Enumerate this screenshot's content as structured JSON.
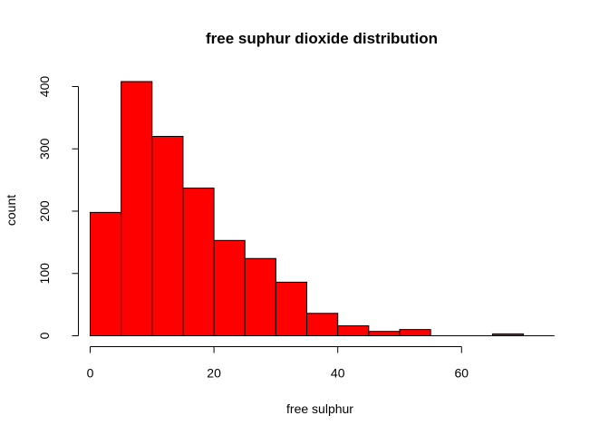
{
  "chart_data": {
    "type": "bar",
    "subtype": "histogram",
    "title": "free suphur dioxide distribution",
    "xlabel": "free sulphur",
    "ylabel": "count",
    "bin_width": 5,
    "bins": [
      {
        "start": 0,
        "end": 5,
        "count": 198
      },
      {
        "start": 5,
        "end": 10,
        "count": 408
      },
      {
        "start": 10,
        "end": 15,
        "count": 320
      },
      {
        "start": 15,
        "end": 20,
        "count": 237
      },
      {
        "start": 20,
        "end": 25,
        "count": 153
      },
      {
        "start": 25,
        "end": 30,
        "count": 124
      },
      {
        "start": 30,
        "end": 35,
        "count": 86
      },
      {
        "start": 35,
        "end": 40,
        "count": 36
      },
      {
        "start": 40,
        "end": 45,
        "count": 16
      },
      {
        "start": 45,
        "end": 50,
        "count": 7
      },
      {
        "start": 50,
        "end": 55,
        "count": 10
      },
      {
        "start": 55,
        "end": 60,
        "count": 0
      },
      {
        "start": 60,
        "end": 65,
        "count": 0
      },
      {
        "start": 65,
        "end": 70,
        "count": 3
      }
    ],
    "xlim": [
      0,
      75
    ],
    "ylim": [
      0,
      420
    ],
    "x_ticks": [
      0,
      20,
      40,
      60
    ],
    "y_ticks": [
      0,
      100,
      200,
      300,
      400
    ],
    "bar_color": "#ff0000",
    "bar_border_color": "#000000",
    "grid": false,
    "legend": "none"
  }
}
